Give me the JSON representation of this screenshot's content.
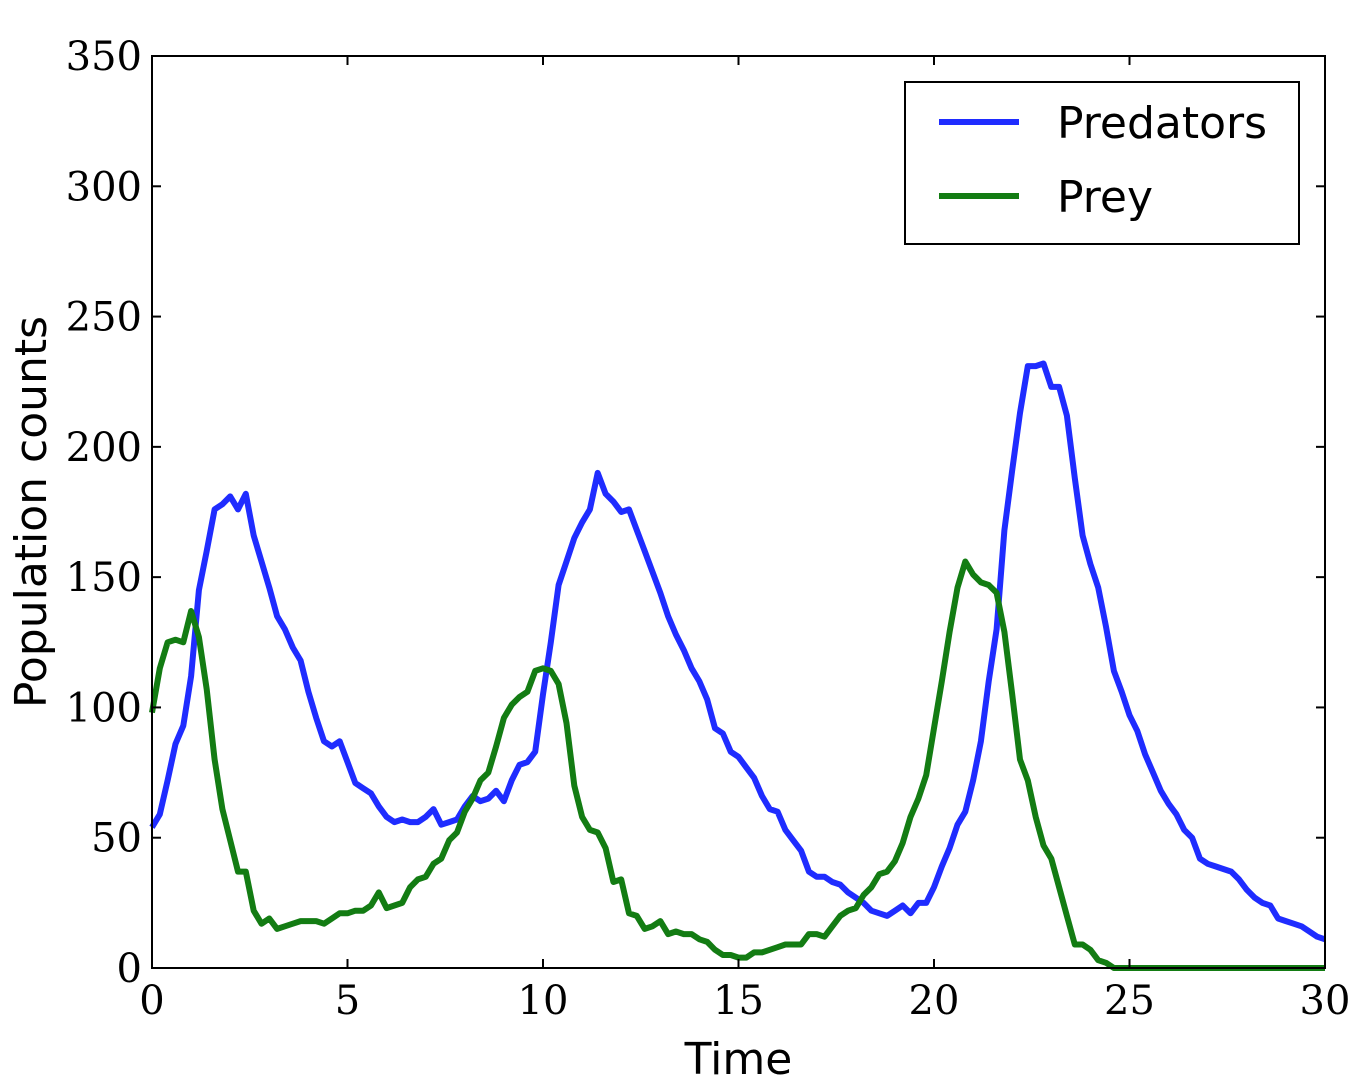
{
  "chart_data": {
    "type": "line",
    "title": "",
    "xlabel": "Time",
    "ylabel": "Population counts",
    "xlim": [
      0,
      30
    ],
    "ylim": [
      0,
      350
    ],
    "xticks": [
      0,
      5,
      10,
      15,
      20,
      25,
      30
    ],
    "yticks": [
      0,
      50,
      100,
      150,
      200,
      250,
      300,
      350
    ],
    "xtick_labels": [
      "0",
      "5",
      "10",
      "15",
      "20",
      "25",
      "30"
    ],
    "ytick_labels": [
      "0",
      "50",
      "100",
      "150",
      "200",
      "250",
      "300",
      "350"
    ],
    "grid": false,
    "legend_position": "top-right",
    "series": [
      {
        "name": "Predators",
        "color": "#1f2cff",
        "points": [
          [
            0,
            54
          ],
          [
            0.2,
            59
          ],
          [
            0.4,
            72
          ],
          [
            0.6,
            86
          ],
          [
            0.8,
            93
          ],
          [
            1.0,
            112
          ],
          [
            1.2,
            145
          ],
          [
            1.4,
            160
          ],
          [
            1.6,
            176
          ],
          [
            1.8,
            178
          ],
          [
            2.0,
            181
          ],
          [
            2.2,
            176
          ],
          [
            2.4,
            182
          ],
          [
            2.6,
            166
          ],
          [
            2.8,
            156
          ],
          [
            3.0,
            146
          ],
          [
            3.2,
            135
          ],
          [
            3.4,
            130
          ],
          [
            3.6,
            123
          ],
          [
            3.8,
            118
          ],
          [
            4.0,
            106
          ],
          [
            4.2,
            96
          ],
          [
            4.4,
            87
          ],
          [
            4.6,
            85
          ],
          [
            4.8,
            87
          ],
          [
            5.0,
            79
          ],
          [
            5.2,
            71
          ],
          [
            5.4,
            69
          ],
          [
            5.6,
            67
          ],
          [
            5.8,
            62
          ],
          [
            6.0,
            58
          ],
          [
            6.2,
            56
          ],
          [
            6.4,
            57
          ],
          [
            6.6,
            56
          ],
          [
            6.8,
            56
          ],
          [
            7.0,
            58
          ],
          [
            7.2,
            61
          ],
          [
            7.4,
            55
          ],
          [
            7.6,
            56
          ],
          [
            7.8,
            57
          ],
          [
            8.0,
            62
          ],
          [
            8.2,
            66
          ],
          [
            8.4,
            64
          ],
          [
            8.6,
            65
          ],
          [
            8.8,
            68
          ],
          [
            9.0,
            64
          ],
          [
            9.2,
            72
          ],
          [
            9.4,
            78
          ],
          [
            9.6,
            79
          ],
          [
            9.8,
            83
          ],
          [
            10.0,
            105
          ],
          [
            10.2,
            125
          ],
          [
            10.4,
            147
          ],
          [
            10.6,
            156
          ],
          [
            10.8,
            165
          ],
          [
            11.0,
            171
          ],
          [
            11.2,
            176
          ],
          [
            11.4,
            190
          ],
          [
            11.6,
            182
          ],
          [
            11.8,
            179
          ],
          [
            12.0,
            175
          ],
          [
            12.2,
            176
          ],
          [
            12.4,
            168
          ],
          [
            12.6,
            160
          ],
          [
            12.8,
            152
          ],
          [
            13.0,
            144
          ],
          [
            13.2,
            135
          ],
          [
            13.4,
            128
          ],
          [
            13.6,
            122
          ],
          [
            13.8,
            115
          ],
          [
            14.0,
            110
          ],
          [
            14.2,
            103
          ],
          [
            14.4,
            92
          ],
          [
            14.6,
            90
          ],
          [
            14.8,
            83
          ],
          [
            15.0,
            81
          ],
          [
            15.2,
            77
          ],
          [
            15.4,
            73
          ],
          [
            15.6,
            66
          ],
          [
            15.8,
            61
          ],
          [
            16.0,
            60
          ],
          [
            16.2,
            53
          ],
          [
            16.4,
            49
          ],
          [
            16.6,
            45
          ],
          [
            16.8,
            37
          ],
          [
            17.0,
            35
          ],
          [
            17.2,
            35
          ],
          [
            17.4,
            33
          ],
          [
            17.6,
            32
          ],
          [
            17.8,
            29
          ],
          [
            18.0,
            27
          ],
          [
            18.2,
            25
          ],
          [
            18.4,
            22
          ],
          [
            18.6,
            21
          ],
          [
            18.8,
            20
          ],
          [
            19.0,
            22
          ],
          [
            19.2,
            24
          ],
          [
            19.4,
            21
          ],
          [
            19.6,
            25
          ],
          [
            19.8,
            25
          ],
          [
            20.0,
            31
          ],
          [
            20.2,
            39
          ],
          [
            20.4,
            46
          ],
          [
            20.6,
            55
          ],
          [
            20.8,
            60
          ],
          [
            21.0,
            72
          ],
          [
            21.2,
            87
          ],
          [
            21.4,
            110
          ],
          [
            21.6,
            130
          ],
          [
            21.8,
            168
          ],
          [
            22.0,
            191
          ],
          [
            22.2,
            213
          ],
          [
            22.4,
            231
          ],
          [
            22.6,
            231
          ],
          [
            22.8,
            232
          ],
          [
            23.0,
            223
          ],
          [
            23.2,
            223
          ],
          [
            23.4,
            212
          ],
          [
            23.6,
            188
          ],
          [
            23.8,
            166
          ],
          [
            24.0,
            155
          ],
          [
            24.2,
            146
          ],
          [
            24.4,
            131
          ],
          [
            24.6,
            114
          ],
          [
            24.8,
            106
          ],
          [
            25.0,
            97
          ],
          [
            25.2,
            91
          ],
          [
            25.4,
            82
          ],
          [
            25.6,
            75
          ],
          [
            25.8,
            68
          ],
          [
            26.0,
            63
          ],
          [
            26.2,
            59
          ],
          [
            26.4,
            53
          ],
          [
            26.6,
            50
          ],
          [
            26.8,
            42
          ],
          [
            27.0,
            40
          ],
          [
            27.2,
            39
          ],
          [
            27.4,
            38
          ],
          [
            27.6,
            37
          ],
          [
            27.8,
            34
          ],
          [
            28.0,
            30
          ],
          [
            28.2,
            27
          ],
          [
            28.4,
            25
          ],
          [
            28.6,
            24
          ],
          [
            28.8,
            19
          ],
          [
            29.0,
            18
          ],
          [
            29.2,
            17
          ],
          [
            29.4,
            16
          ],
          [
            29.6,
            14
          ],
          [
            29.8,
            12
          ],
          [
            30.0,
            11
          ]
        ]
      },
      {
        "name": "Prey",
        "color": "#137c13",
        "points": [
          [
            0,
            98
          ],
          [
            0.2,
            115
          ],
          [
            0.4,
            125
          ],
          [
            0.6,
            126
          ],
          [
            0.8,
            125
          ],
          [
            1.0,
            137
          ],
          [
            1.2,
            127
          ],
          [
            1.4,
            107
          ],
          [
            1.6,
            80
          ],
          [
            1.8,
            61
          ],
          [
            2.0,
            49
          ],
          [
            2.2,
            37
          ],
          [
            2.4,
            37
          ],
          [
            2.6,
            22
          ],
          [
            2.8,
            17
          ],
          [
            3.0,
            19
          ],
          [
            3.2,
            15
          ],
          [
            3.4,
            16
          ],
          [
            3.6,
            17
          ],
          [
            3.8,
            18
          ],
          [
            4.0,
            18
          ],
          [
            4.2,
            18
          ],
          [
            4.4,
            17
          ],
          [
            4.6,
            19
          ],
          [
            4.8,
            21
          ],
          [
            5.0,
            21
          ],
          [
            5.2,
            22
          ],
          [
            5.4,
            22
          ],
          [
            5.6,
            24
          ],
          [
            5.8,
            29
          ],
          [
            6.0,
            23
          ],
          [
            6.2,
            24
          ],
          [
            6.4,
            25
          ],
          [
            6.6,
            31
          ],
          [
            6.8,
            34
          ],
          [
            7.0,
            35
          ],
          [
            7.2,
            40
          ],
          [
            7.4,
            42
          ],
          [
            7.6,
            49
          ],
          [
            7.8,
            52
          ],
          [
            8.0,
            60
          ],
          [
            8.2,
            65
          ],
          [
            8.4,
            72
          ],
          [
            8.6,
            75
          ],
          [
            8.8,
            85
          ],
          [
            9.0,
            96
          ],
          [
            9.2,
            101
          ],
          [
            9.4,
            104
          ],
          [
            9.6,
            106
          ],
          [
            9.8,
            114
          ],
          [
            10.0,
            115
          ],
          [
            10.2,
            114
          ],
          [
            10.4,
            109
          ],
          [
            10.6,
            94
          ],
          [
            10.8,
            70
          ],
          [
            11.0,
            58
          ],
          [
            11.2,
            53
          ],
          [
            11.4,
            52
          ],
          [
            11.6,
            46
          ],
          [
            11.8,
            33
          ],
          [
            12.0,
            34
          ],
          [
            12.2,
            21
          ],
          [
            12.4,
            20
          ],
          [
            12.6,
            15
          ],
          [
            12.8,
            16
          ],
          [
            13.0,
            18
          ],
          [
            13.2,
            13
          ],
          [
            13.4,
            14
          ],
          [
            13.6,
            13
          ],
          [
            13.8,
            13
          ],
          [
            14.0,
            11
          ],
          [
            14.2,
            10
          ],
          [
            14.4,
            7
          ],
          [
            14.6,
            5
          ],
          [
            14.8,
            5
          ],
          [
            15.0,
            4
          ],
          [
            15.2,
            4
          ],
          [
            15.4,
            6
          ],
          [
            15.6,
            6
          ],
          [
            15.8,
            7
          ],
          [
            16.0,
            8
          ],
          [
            16.2,
            9
          ],
          [
            16.4,
            9
          ],
          [
            16.6,
            9
          ],
          [
            16.8,
            13
          ],
          [
            17.0,
            13
          ],
          [
            17.2,
            12
          ],
          [
            17.4,
            16
          ],
          [
            17.6,
            20
          ],
          [
            17.8,
            22
          ],
          [
            18.0,
            23
          ],
          [
            18.2,
            28
          ],
          [
            18.4,
            31
          ],
          [
            18.6,
            36
          ],
          [
            18.8,
            37
          ],
          [
            19.0,
            41
          ],
          [
            19.2,
            48
          ],
          [
            19.4,
            58
          ],
          [
            19.6,
            65
          ],
          [
            19.8,
            74
          ],
          [
            20.0,
            92
          ],
          [
            20.2,
            110
          ],
          [
            20.4,
            129
          ],
          [
            20.6,
            146
          ],
          [
            20.8,
            156
          ],
          [
            21.0,
            151
          ],
          [
            21.2,
            148
          ],
          [
            21.4,
            147
          ],
          [
            21.6,
            144
          ],
          [
            21.8,
            129
          ],
          [
            22.0,
            105
          ],
          [
            22.2,
            80
          ],
          [
            22.4,
            72
          ],
          [
            22.6,
            58
          ],
          [
            22.8,
            47
          ],
          [
            23.0,
            42
          ],
          [
            23.2,
            31
          ],
          [
            23.4,
            20
          ],
          [
            23.6,
            9
          ],
          [
            23.8,
            9
          ],
          [
            24.0,
            7
          ],
          [
            24.2,
            3
          ],
          [
            24.4,
            2
          ],
          [
            24.6,
            0
          ],
          [
            25.0,
            0
          ],
          [
            26.0,
            0
          ],
          [
            27.0,
            0
          ],
          [
            28.0,
            0
          ],
          [
            29.0,
            0
          ],
          [
            30.0,
            0
          ]
        ]
      }
    ]
  }
}
